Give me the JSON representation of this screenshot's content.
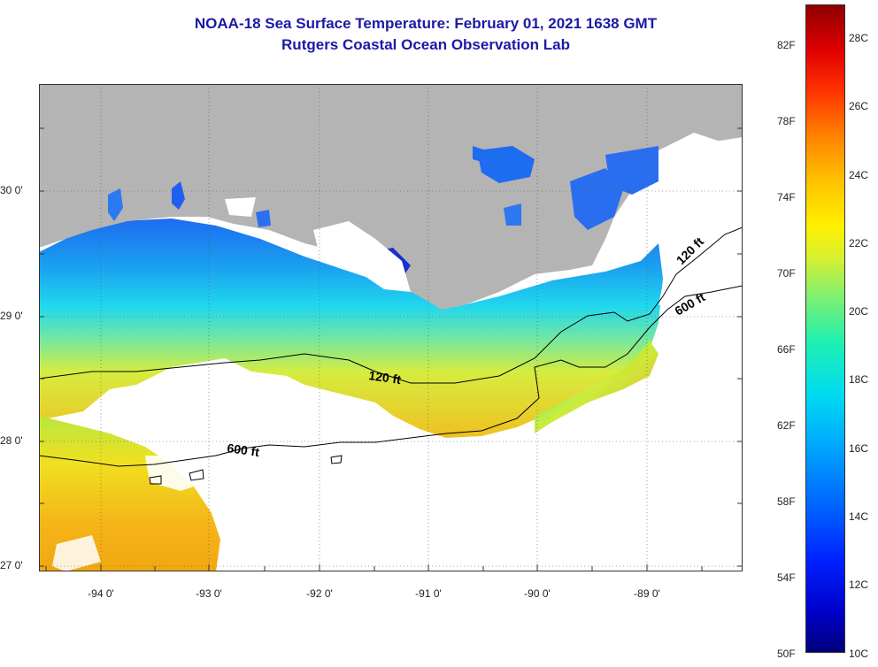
{
  "title": "NOAA-18 Sea Surface Temperature:  February 01, 2021 1638 GMT",
  "subtitle": "Rutgers Coastal Ocean Observation Lab",
  "map": {
    "lat_labels": [
      "30 0'",
      "29 0'",
      "28 0'",
      "27 0'"
    ],
    "lon_labels": [
      "-94 0'",
      "-93 0'",
      "-92 0'",
      "-91 0'",
      "-90 0'",
      "-89 0'"
    ],
    "contours": {
      "c120_left": "120 ft",
      "c600_left": "600 ft",
      "c120_right": "120 ft",
      "c600_right": "600 ft"
    },
    "land_color": "#b4b4b4",
    "no_data_color": "#ffffff"
  },
  "colorbar": {
    "fahrenheit": [
      "82F",
      "78F",
      "74F",
      "70F",
      "66F",
      "62F",
      "58F",
      "54F",
      "50F"
    ],
    "celsius": [
      "28C",
      "26C",
      "24C",
      "22C",
      "20C",
      "18C",
      "16C",
      "14C",
      "12C",
      "10C"
    ]
  }
}
